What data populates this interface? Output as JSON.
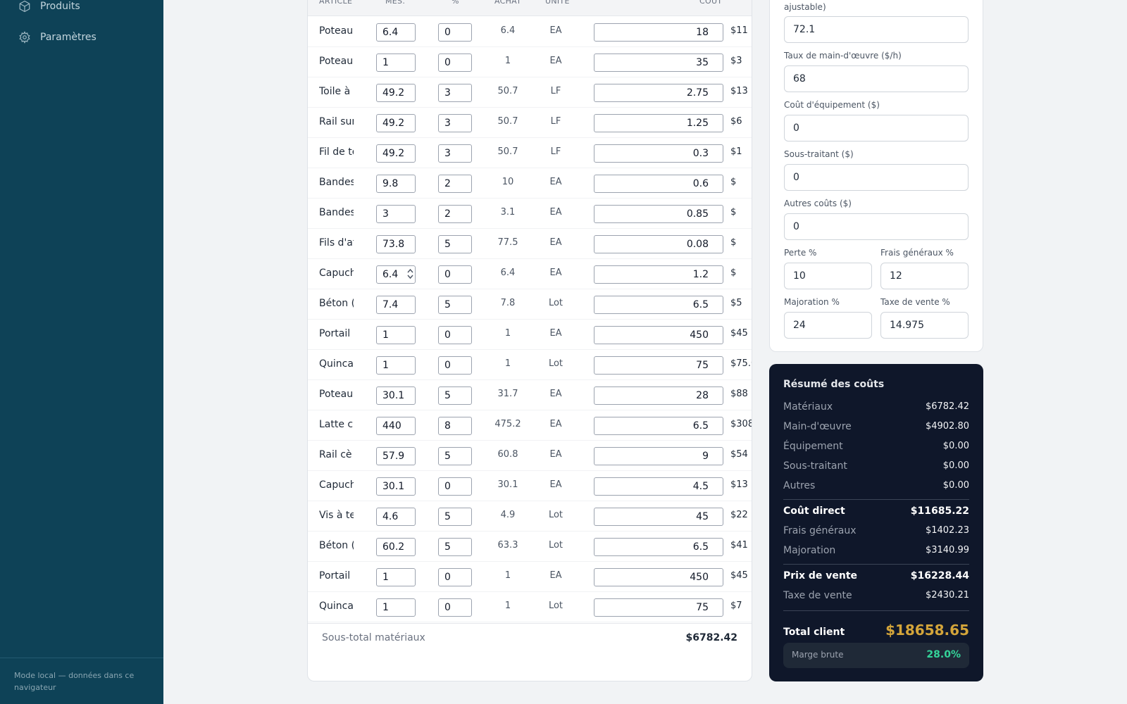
{
  "sidebar": {
    "nav": [
      {
        "label": "Produits",
        "icon": "box-icon"
      },
      {
        "label": "Paramètres",
        "icon": "gear-icon"
      }
    ],
    "footer": "Mode local — données dans ce navigateur"
  },
  "materials": {
    "columns": {
      "article": "ARTICLE",
      "mes": "MES.",
      "pct": "%",
      "achat": "ACHAT",
      "unite": "UNITÉ",
      "cout": "COÛT"
    },
    "rows": [
      {
        "name": "Poteau",
        "mes": "6.4",
        "pct": "0",
        "achat": "6.4",
        "unit": "EA",
        "cost": "18",
        "total": "$11"
      },
      {
        "name": "Poteau",
        "mes": "1",
        "pct": "0",
        "achat": "1",
        "unit": "EA",
        "cost": "35",
        "total": "$3"
      },
      {
        "name": "Toile à",
        "mes": "49.2",
        "pct": "3",
        "achat": "50.7",
        "unit": "LF",
        "cost": "2.75",
        "total": "$13"
      },
      {
        "name": "Rail sur",
        "mes": "49.2",
        "pct": "3",
        "achat": "50.7",
        "unit": "LF",
        "cost": "1.25",
        "total": "$6"
      },
      {
        "name": "Fil de te",
        "mes": "49.2",
        "pct": "3",
        "achat": "50.7",
        "unit": "LF",
        "cost": "0.3",
        "total": "$1"
      },
      {
        "name": "Bandes",
        "mes": "9.8",
        "pct": "2",
        "achat": "10",
        "unit": "EA",
        "cost": "0.6",
        "total": "$"
      },
      {
        "name": "Bandes",
        "mes": "3",
        "pct": "2",
        "achat": "3.1",
        "unit": "EA",
        "cost": "0.85",
        "total": "$"
      },
      {
        "name": "Fils d'at",
        "mes": "73.8",
        "pct": "5",
        "achat": "77.5",
        "unit": "EA",
        "cost": "0.08",
        "total": "$"
      },
      {
        "name": "Capuch",
        "mes": "6.4",
        "pct": "0",
        "achat": "6.4",
        "unit": "EA",
        "cost": "1.2",
        "total": "$"
      },
      {
        "name": "Béton (",
        "mes": "7.4",
        "pct": "5",
        "achat": "7.8",
        "unit": "Lot",
        "cost": "6.5",
        "total": "$5"
      },
      {
        "name": "Portail",
        "mes": "1",
        "pct": "0",
        "achat": "1",
        "unit": "EA",
        "cost": "450",
        "total": "$45"
      },
      {
        "name": "Quinca",
        "mes": "1",
        "pct": "0",
        "achat": "1",
        "unit": "Lot",
        "cost": "75",
        "total": "$75.00"
      },
      {
        "name": "Poteau",
        "mes": "30.1",
        "pct": "5",
        "achat": "31.7",
        "unit": "EA",
        "cost": "28",
        "total": "$88"
      },
      {
        "name": "Latte c",
        "mes": "440",
        "pct": "8",
        "achat": "475.2",
        "unit": "EA",
        "cost": "6.5",
        "total": "$308"
      },
      {
        "name": "Rail cè",
        "mes": "57.9",
        "pct": "5",
        "achat": "60.8",
        "unit": "EA",
        "cost": "9",
        "total": "$54"
      },
      {
        "name": "Capuch",
        "mes": "30.1",
        "pct": "0",
        "achat": "30.1",
        "unit": "EA",
        "cost": "4.5",
        "total": "$13"
      },
      {
        "name": "Vis à te",
        "mes": "4.6",
        "pct": "5",
        "achat": "4.9",
        "unit": "Lot",
        "cost": "45",
        "total": "$22"
      },
      {
        "name": "Béton (",
        "mes": "60.2",
        "pct": "5",
        "achat": "63.3",
        "unit": "Lot",
        "cost": "6.5",
        "total": "$41"
      },
      {
        "name": "Portail",
        "mes": "1",
        "pct": "0",
        "achat": "1",
        "unit": "EA",
        "cost": "450",
        "total": "$45"
      },
      {
        "name": "Quinca",
        "mes": "1",
        "pct": "0",
        "achat": "1",
        "unit": "Lot",
        "cost": "75",
        "total": "$7"
      }
    ],
    "subtotal_label": "Sous-total matériaux",
    "subtotal_value": "$6782.42"
  },
  "settings": {
    "fields": [
      {
        "label": "ajustable)",
        "value": "72.1"
      },
      {
        "label": "Taux de main-d'œuvre ($/h)",
        "value": "68"
      },
      {
        "label": "Coût d'équipement ($)",
        "value": "0"
      },
      {
        "label": "Sous-traitant ($)",
        "value": "0"
      },
      {
        "label": "Autres coûts ($)",
        "value": "0"
      },
      {
        "label": "Perte %",
        "value": "10"
      },
      {
        "label": "Frais généraux %",
        "value": "12"
      },
      {
        "label": "Majoration %",
        "value": "24"
      },
      {
        "label": "Taxe de vente %",
        "value": "14.975"
      }
    ]
  },
  "summary": {
    "title": "Résumé des coûts",
    "lines": [
      {
        "label": "Matériaux",
        "value": "$6782.42"
      },
      {
        "label": "Main-d'œuvre",
        "value": "$4902.80"
      },
      {
        "label": "Équipement",
        "value": "$0.00"
      },
      {
        "label": "Sous-traitant",
        "value": "$0.00"
      },
      {
        "label": "Autres",
        "value": "$0.00"
      },
      {
        "label": "Coût direct",
        "value": "$11685.22"
      },
      {
        "label": "Frais généraux",
        "value": "$1402.23"
      },
      {
        "label": "Majoration",
        "value": "$3140.99"
      },
      {
        "label": "Prix de vente",
        "value": "$16228.44"
      },
      {
        "label": "Taxe de vente",
        "value": "$2430.21"
      }
    ],
    "total_label": "Total client",
    "total_value": "$18658.65",
    "margin_label": "Marge brute",
    "margin_value": "28.0%"
  },
  "colors": {
    "sidebar": "#0e4257",
    "summary_bg": "#0f172a",
    "total_gold": "#d4a53a",
    "margin_green": "#34d399"
  }
}
